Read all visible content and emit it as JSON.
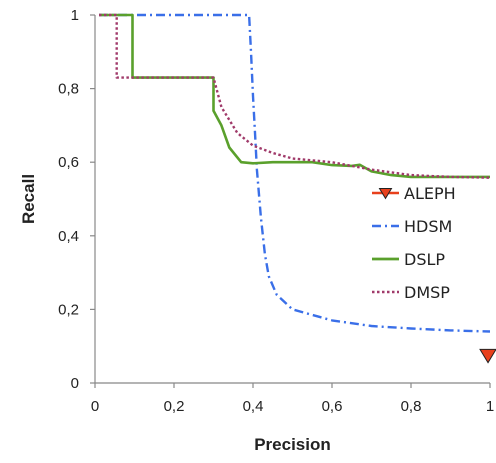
{
  "chart_data": {
    "type": "line",
    "title": "",
    "xlabel": "Precision",
    "ylabel": "Recall",
    "xlim": [
      0,
      1
    ],
    "ylim": [
      0,
      1
    ],
    "x_ticks": [
      "0",
      "0,2",
      "0,4",
      "0,6",
      "0,8",
      "1"
    ],
    "y_ticks": [
      "0",
      "0,2",
      "0,4",
      "0,6",
      "0,8",
      "1"
    ],
    "x_tick_values": [
      0,
      0.2,
      0.4,
      0.6,
      0.8,
      1
    ],
    "y_tick_values": [
      0,
      0.2,
      0.4,
      0.6,
      0.8,
      1
    ],
    "grid": false,
    "legend_position": "right",
    "series": [
      {
        "name": "ALEPH",
        "color": "#e8401c",
        "style": "marker-triangle-down",
        "points": [
          [
            0.995,
            0.075
          ]
        ]
      },
      {
        "name": "HDSM",
        "color": "#3a6fe8",
        "style": "dash-dot",
        "points": [
          [
            0.01,
            1.0
          ],
          [
            0.39,
            1.0
          ],
          [
            0.395,
            0.9
          ],
          [
            0.4,
            0.78
          ],
          [
            0.405,
            0.68
          ],
          [
            0.41,
            0.58
          ],
          [
            0.42,
            0.45
          ],
          [
            0.43,
            0.35
          ],
          [
            0.44,
            0.29
          ],
          [
            0.46,
            0.24
          ],
          [
            0.5,
            0.2
          ],
          [
            0.55,
            0.185
          ],
          [
            0.6,
            0.17
          ],
          [
            0.7,
            0.155
          ],
          [
            0.8,
            0.148
          ],
          [
            0.9,
            0.143
          ],
          [
            1.0,
            0.14
          ]
        ]
      },
      {
        "name": "DSLP",
        "color": "#5aa02c",
        "style": "solid",
        "points": [
          [
            0.01,
            1.0
          ],
          [
            0.095,
            1.0
          ],
          [
            0.095,
            0.83
          ],
          [
            0.3,
            0.83
          ],
          [
            0.3,
            0.74
          ],
          [
            0.32,
            0.7
          ],
          [
            0.34,
            0.64
          ],
          [
            0.37,
            0.6
          ],
          [
            0.4,
            0.597
          ],
          [
            0.45,
            0.6
          ],
          [
            0.55,
            0.6
          ],
          [
            0.6,
            0.592
          ],
          [
            0.65,
            0.59
          ],
          [
            0.67,
            0.593
          ],
          [
            0.7,
            0.575
          ],
          [
            0.75,
            0.565
          ],
          [
            0.8,
            0.56
          ],
          [
            0.9,
            0.56
          ],
          [
            1.0,
            0.56
          ]
        ]
      },
      {
        "name": "DMSP",
        "color": "#a03a6a",
        "style": "dotted",
        "points": [
          [
            0.01,
            1.0
          ],
          [
            0.055,
            1.0
          ],
          [
            0.055,
            0.83
          ],
          [
            0.3,
            0.83
          ],
          [
            0.32,
            0.75
          ],
          [
            0.36,
            0.68
          ],
          [
            0.4,
            0.645
          ],
          [
            0.45,
            0.625
          ],
          [
            0.5,
            0.61
          ],
          [
            0.6,
            0.6
          ],
          [
            0.7,
            0.58
          ],
          [
            0.8,
            0.565
          ],
          [
            0.9,
            0.56
          ],
          [
            1.0,
            0.558
          ]
        ]
      }
    ]
  }
}
